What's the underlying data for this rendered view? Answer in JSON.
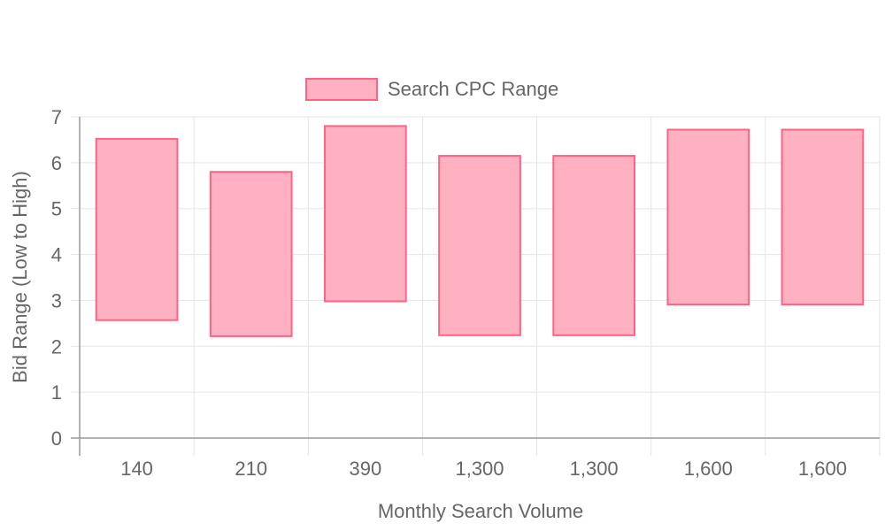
{
  "chart_data": {
    "type": "bar",
    "subtype": "floating-range",
    "categories": [
      "140",
      "210",
      "390",
      "1,300",
      "1,300",
      "1,600",
      "1,600"
    ],
    "series": [
      {
        "name": "Search CPC Range",
        "low": [
          2.57,
          2.22,
          2.98,
          2.24,
          2.24,
          2.91,
          2.91
        ],
        "high": [
          6.52,
          5.8,
          6.8,
          6.15,
          6.15,
          6.72,
          6.72
        ],
        "fill_color": "#ffb1c1",
        "border_color": "#ff6384"
      }
    ],
    "xlabel": "Monthly Search Volume",
    "ylabel": "Bid Range (Low to High)",
    "ylim": [
      0,
      7
    ],
    "yticks": [
      "0",
      "1",
      "2",
      "3",
      "4",
      "5",
      "6",
      "7"
    ],
    "grid": true,
    "legend_position": "top",
    "colors": {
      "grid": "#e5e5e5",
      "axis": "#999999",
      "text": "#666666"
    }
  }
}
